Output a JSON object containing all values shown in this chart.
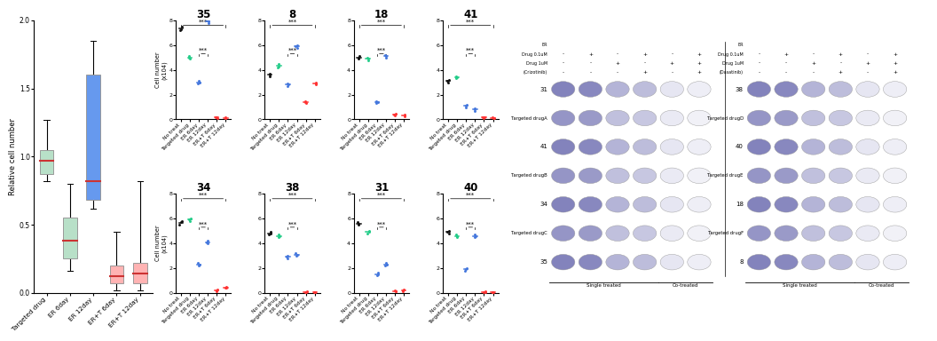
{
  "boxplot": {
    "categories": [
      "Targeted drug",
      "ER 6day",
      "ER 12day",
      "ER+T 6day",
      "ER+T 12day"
    ],
    "colors": [
      "#b8e0c8",
      "#b8e0c8",
      "#6699ee",
      "#ffb3b3",
      "#ffb3b3"
    ],
    "medians": [
      0.97,
      0.38,
      0.82,
      0.12,
      0.14
    ],
    "q1": [
      0.87,
      0.25,
      0.68,
      0.07,
      0.07
    ],
    "q3": [
      1.05,
      0.55,
      1.6,
      0.2,
      0.22
    ],
    "whisker_low": [
      0.82,
      0.16,
      0.62,
      0.02,
      0.02
    ],
    "whisker_high": [
      1.27,
      0.8,
      1.85,
      0.45,
      0.82
    ],
    "ylabel": "Relative cell number",
    "ylim": [
      0.0,
      2.0
    ],
    "yticks": [
      0.0,
      0.5,
      1.0,
      1.5,
      2.0
    ]
  },
  "scatter_panels": {
    "xlabel_groups": [
      "No treat",
      "Targeted drug",
      "ER 6day",
      "ER 12day",
      "ER+T 6day",
      "ER+T 12day"
    ],
    "dot_colors": [
      "#111111",
      "#22cc88",
      "#4477dd",
      "#4477dd",
      "#ff3333",
      "#ff3333"
    ],
    "panels": [
      {
        "title": "35",
        "row": 0,
        "col": 0,
        "data": [
          [
            7.2,
            7.5,
            7.3
          ],
          [
            4.9,
            5.1,
            5.0
          ],
          [
            2.9,
            3.0,
            3.1
          ],
          [
            7.8,
            8.0,
            7.9
          ],
          [
            0.1,
            0.15,
            0.2
          ],
          [
            0.1,
            0.1,
            0.15
          ]
        ]
      },
      {
        "title": "8",
        "row": 0,
        "col": 1,
        "data": [
          [
            3.5,
            3.6,
            3.7
          ],
          [
            4.2,
            4.5,
            4.3
          ],
          [
            2.7,
            2.8,
            2.9
          ],
          [
            5.8,
            6.0,
            5.9
          ],
          [
            1.3,
            1.5,
            1.4
          ],
          [
            2.8,
            3.0,
            2.9
          ]
        ]
      },
      {
        "title": "18",
        "row": 0,
        "col": 2,
        "data": [
          [
            4.9,
            5.0,
            5.1
          ],
          [
            4.8,
            5.0,
            4.9
          ],
          [
            1.3,
            1.4,
            1.5
          ],
          [
            5.0,
            5.2,
            5.1
          ],
          [
            0.3,
            0.4,
            0.5
          ],
          [
            0.25,
            0.3,
            0.4
          ]
        ]
      },
      {
        "title": "41",
        "row": 0,
        "col": 3,
        "data": [
          [
            3.0,
            3.2,
            3.1
          ],
          [
            3.3,
            3.5,
            3.4
          ],
          [
            1.0,
            1.1,
            1.2
          ],
          [
            0.7,
            0.8,
            0.9
          ],
          [
            0.1,
            0.15,
            0.2
          ],
          [
            0.1,
            0.12,
            0.15
          ]
        ]
      },
      {
        "title": "34",
        "row": 1,
        "col": 0,
        "data": [
          [
            5.5,
            5.8,
            5.7
          ],
          [
            5.8,
            6.0,
            5.9
          ],
          [
            2.2,
            2.4,
            2.3
          ],
          [
            4.0,
            4.2,
            4.1
          ],
          [
            0.15,
            0.2,
            0.25
          ],
          [
            0.4,
            0.5,
            0.45
          ]
        ]
      },
      {
        "title": "38",
        "row": 1,
        "col": 1,
        "data": [
          [
            4.7,
            4.8,
            4.9
          ],
          [
            4.5,
            4.6,
            4.7
          ],
          [
            2.8,
            3.0,
            2.9
          ],
          [
            3.0,
            3.2,
            3.1
          ],
          [
            0.05,
            0.08,
            0.1
          ],
          [
            0.05,
            0.07,
            0.08
          ]
        ]
      },
      {
        "title": "31",
        "row": 1,
        "col": 2,
        "data": [
          [
            5.5,
            5.7,
            5.6
          ],
          [
            4.8,
            5.0,
            4.9
          ],
          [
            1.4,
            1.5,
            1.6
          ],
          [
            2.2,
            2.3,
            2.4
          ],
          [
            0.1,
            0.15,
            0.2
          ],
          [
            0.15,
            0.2,
            0.25
          ]
        ]
      },
      {
        "title": "40",
        "row": 1,
        "col": 3,
        "data": [
          [
            4.8,
            5.0,
            4.9
          ],
          [
            4.5,
            4.6,
            4.7
          ],
          [
            1.8,
            1.9,
            2.0
          ],
          [
            4.5,
            4.7,
            4.6
          ],
          [
            0.05,
            0.08,
            0.1
          ],
          [
            0.05,
            0.07,
            0.09
          ]
        ]
      }
    ]
  },
  "colony": {
    "left_drug": "Crizotinib",
    "right_drug": "Dasatinib",
    "left_rows": [
      "31",
      "Targeted drugA",
      "41",
      "Targeted drugB",
      "34",
      "Targeted drugC",
      "35"
    ],
    "right_rows": [
      "38",
      "Targeted drugD",
      "40",
      "Targeted drugE",
      "18",
      "Targeted drugF",
      "8"
    ],
    "plus_minus": [
      [
        "-",
        "+",
        "-",
        "+",
        "-",
        "+"
      ],
      [
        "-",
        "-",
        "+",
        "-",
        "+",
        "+"
      ],
      [
        "-",
        "-",
        "-",
        "+",
        "-",
        "+"
      ]
    ],
    "header_labels": [
      "ER",
      "Drug 0.1uM",
      "Drug 1uM"
    ],
    "n_cols": 6,
    "col_fill": [
      0.75,
      0.72,
      0.45,
      0.4,
      0.15,
      0.1
    ]
  }
}
